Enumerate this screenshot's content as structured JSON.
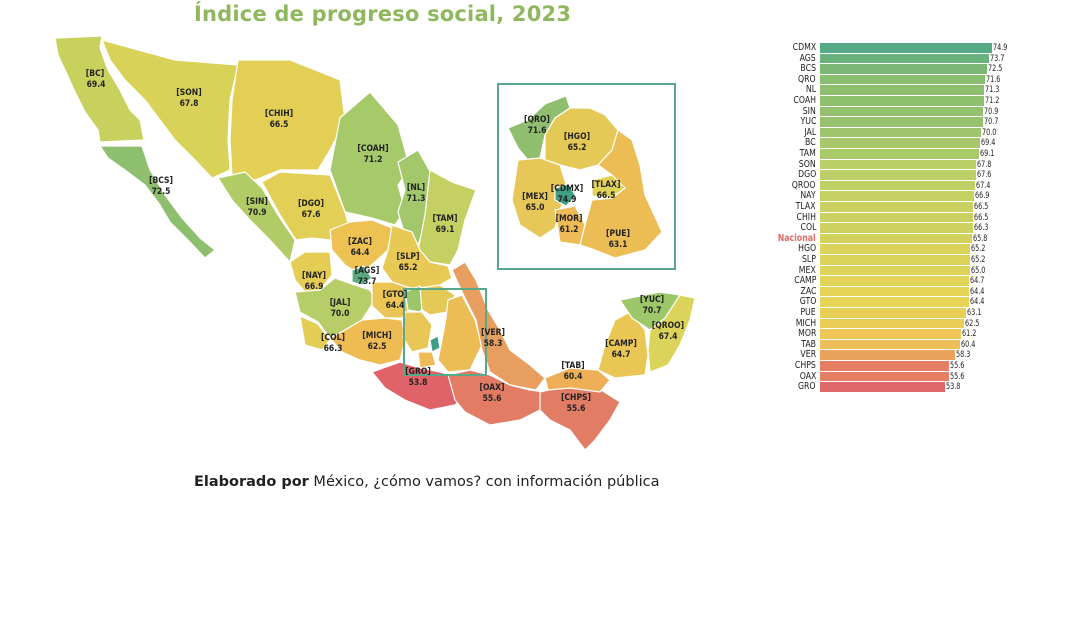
{
  "title": "Índice de progreso social, 2023",
  "credit": {
    "bold": "Elaborado por",
    "rest": " México, ¿cómo vamos? con información pública"
  },
  "colors": {
    "title": "#8fb85e",
    "nacional_label": "#e06a6a",
    "inset_border": "#5aa88a"
  },
  "map": {
    "states": [
      {
        "code": "BC",
        "value": "69.4"
      },
      {
        "code": "SON",
        "value": "67.8"
      },
      {
        "code": "CHIH",
        "value": "66.5"
      },
      {
        "code": "COAH",
        "value": "71.2"
      },
      {
        "code": "BCS",
        "value": "72.5"
      },
      {
        "code": "SIN",
        "value": "70.9"
      },
      {
        "code": "DGO",
        "value": "67.6"
      },
      {
        "code": "NL",
        "value": "71.3"
      },
      {
        "code": "TAM",
        "value": "69.1"
      },
      {
        "code": "ZAC",
        "value": "64.4"
      },
      {
        "code": "SLP",
        "value": "65.2"
      },
      {
        "code": "NAY",
        "value": "66.9"
      },
      {
        "code": "AGS",
        "value": "73.7"
      },
      {
        "code": "GTO",
        "value": "64.4"
      },
      {
        "code": "JAL",
        "value": "70.0"
      },
      {
        "code": "COL",
        "value": "66.3"
      },
      {
        "code": "MICH",
        "value": "62.5"
      },
      {
        "code": "VER",
        "value": "58.3"
      },
      {
        "code": "GRO",
        "value": "53.8"
      },
      {
        "code": "OAX",
        "value": "55.6"
      },
      {
        "code": "CHPS",
        "value": "55.6"
      },
      {
        "code": "TAB",
        "value": "60.4"
      },
      {
        "code": "CAMP",
        "value": "64.7"
      },
      {
        "code": "YUC",
        "value": "70.7"
      },
      {
        "code": "QROO",
        "value": "67.4"
      }
    ],
    "inset": [
      {
        "code": "QRO",
        "value": "71.6"
      },
      {
        "code": "HGO",
        "value": "65.2"
      },
      {
        "code": "MEX",
        "value": "65.0"
      },
      {
        "code": "CDMX",
        "value": "74.9"
      },
      {
        "code": "TLAX",
        "value": "66.5"
      },
      {
        "code": "MOR",
        "value": "61.2"
      },
      {
        "code": "PUE",
        "value": "63.1"
      }
    ]
  },
  "chart_data": {
    "type": "bar",
    "orientation": "horizontal",
    "title": "Índice de progreso social, 2023",
    "xlabel": "",
    "ylabel": "",
    "grid": false,
    "categories": [
      "CDMX",
      "AGS",
      "BCS",
      "QRO",
      "NL",
      "COAH",
      "SIN",
      "YUC",
      "JAL",
      "BC",
      "TAM",
      "SON",
      "DGO",
      "QROO",
      "NAY",
      "TLAX",
      "CHIH",
      "COL",
      "Nacional",
      "HGO",
      "SLP",
      "MEX",
      "CAMP",
      "ZAC",
      "GTO",
      "PUE",
      "MICH",
      "MOR",
      "TAB",
      "VER",
      "CHPS",
      "OAX",
      "GRO"
    ],
    "values": [
      74.9,
      73.7,
      72.5,
      71.6,
      71.3,
      71.2,
      70.9,
      70.7,
      70.0,
      69.4,
      69.1,
      67.8,
      67.6,
      67.4,
      66.9,
      66.5,
      66.5,
      66.3,
      65.8,
      65.2,
      65.2,
      65.0,
      64.7,
      64.4,
      64.4,
      63.1,
      62.5,
      61.2,
      60.4,
      58.3,
      55.6,
      55.6,
      53.8
    ],
    "value_labels": [
      "74.9",
      "73.7",
      "72.5",
      "71.6",
      "71.3",
      "71.2",
      "70.9",
      "70.7",
      "70.0",
      "69.4",
      "69.1",
      "67.8",
      "67.6",
      "67.4",
      "66.9",
      "66.5",
      "66.5",
      "66.3",
      "65.8",
      "65.2",
      "65.2",
      "65.0",
      "64.7",
      "64.4",
      "64.4",
      "63.1",
      "62.5",
      "61.2",
      "60.4",
      "58.3",
      "55.6",
      "55.6",
      "53.8"
    ],
    "highlight": "Nacional",
    "color_scale": [
      "#e0676a",
      "#e8955e",
      "#efc457",
      "#e6d456",
      "#b9cf67",
      "#8dbf6e",
      "#56a985"
    ]
  }
}
